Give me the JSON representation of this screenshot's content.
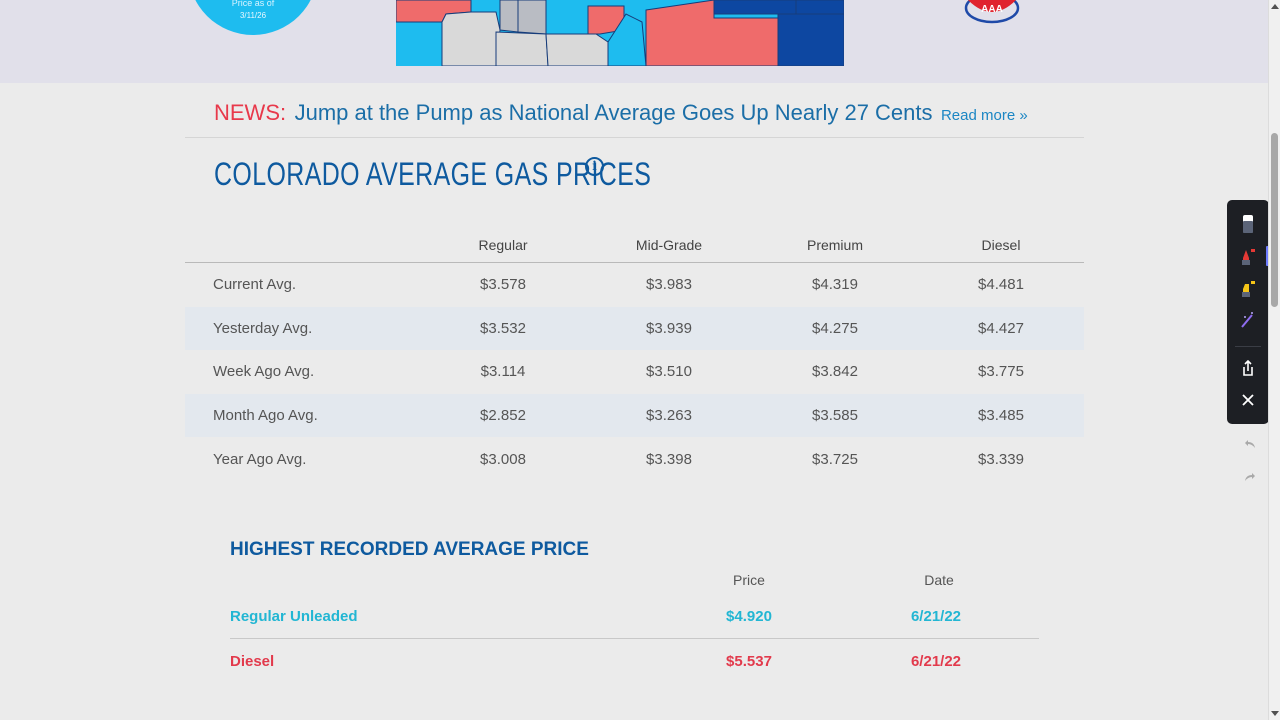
{
  "banner": {
    "price_label": "Price as of",
    "price_date": "3/11/26",
    "colors": {
      "circle": "#1ebcef",
      "map_light_blue": "#1ebcef",
      "map_red": "#ef6b6b",
      "map_dark_blue": "#0d47a1",
      "map_gray": "#d9d9d9"
    }
  },
  "news": {
    "label": "NEWS:",
    "headline": "Jump at the Pump as National Average Goes Up Nearly 27 Cents",
    "read_more": "Read more »"
  },
  "title": "COLORADO AVERAGE GAS PRICES",
  "info_icon": "info-icon",
  "prices": {
    "headers": [
      "",
      "Regular",
      "Mid-Grade",
      "Premium",
      "Diesel"
    ],
    "rows": [
      {
        "label": "Current Avg.",
        "values": [
          "$3.578",
          "$3.983",
          "$4.319",
          "$4.481"
        ]
      },
      {
        "label": "Yesterday Avg.",
        "values": [
          "$3.532",
          "$3.939",
          "$4.275",
          "$4.427"
        ]
      },
      {
        "label": "Week Ago Avg.",
        "values": [
          "$3.114",
          "$3.510",
          "$3.842",
          "$3.775"
        ]
      },
      {
        "label": "Month Ago Avg.",
        "values": [
          "$2.852",
          "$3.263",
          "$3.585",
          "$3.485"
        ]
      },
      {
        "label": "Year Ago Avg.",
        "values": [
          "$3.008",
          "$3.398",
          "$3.725",
          "$3.339"
        ]
      }
    ]
  },
  "highest": {
    "title": "HIGHEST RECORDED AVERAGE PRICE",
    "headers": {
      "price": "Price",
      "date": "Date"
    },
    "rows": [
      {
        "name": "Regular Unleaded",
        "price": "$4.920",
        "date": "6/21/22"
      },
      {
        "name": "Diesel",
        "price": "$5.537",
        "date": "6/21/22"
      }
    ]
  },
  "toolbar": {
    "tools": [
      "eraser-icon",
      "pen-icon",
      "highlighter-icon",
      "magic-pen-icon",
      "share-icon",
      "close-icon"
    ],
    "undo_icon": "undo-icon",
    "redo_icon": "redo-icon"
  }
}
